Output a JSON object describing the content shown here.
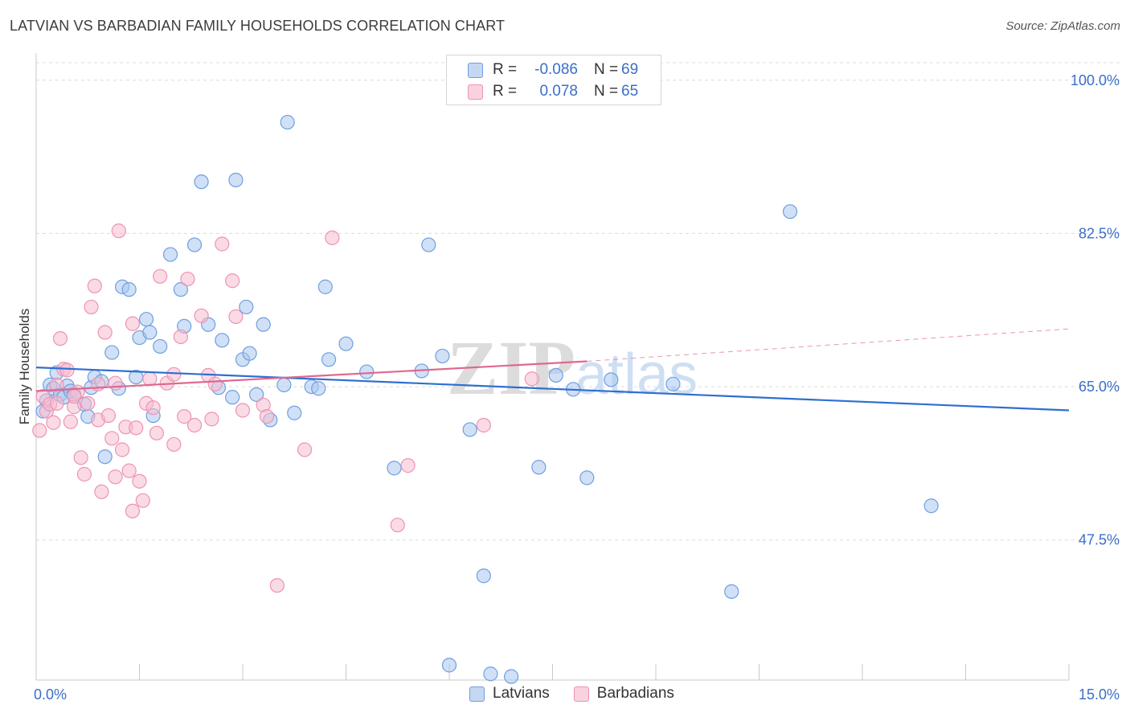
{
  "title": "LATVIAN VS BARBADIAN FAMILY HOUSEHOLDS CORRELATION CHART",
  "source": "Source: ZipAtlas.com",
  "watermark": {
    "zip": "ZIP",
    "atlas": "atlas"
  },
  "colors": {
    "latvian_fill": "#a9c6ee",
    "latvian_stroke": "#6f9fe0",
    "latvian_line": "#2f6fd0",
    "barbadian_fill": "#f6bcd0",
    "barbadian_stroke": "#ee93b3",
    "barbadian_line": "#e0688f",
    "axis_text": "#3a6fcb",
    "grid": "#dcdcdc"
  },
  "legend_top": [
    {
      "r_label": "R =",
      "r_value": "-0.086",
      "n_label": "N =",
      "n_value": "69"
    },
    {
      "r_label": "R =",
      "r_value": "0.078",
      "n_label": "N =",
      "n_value": "65"
    }
  ],
  "chart_data": {
    "type": "scatter",
    "title": "LATVIAN VS BARBADIAN FAMILY HOUSEHOLDS CORRELATION CHART",
    "xlabel": "",
    "ylabel": "Family Households",
    "xlim": [
      0,
      15
    ],
    "ylim": [
      31.5,
      102
    ],
    "x_tick_labels": [
      "0.0%",
      "15.0%"
    ],
    "y_ticks": [
      47.5,
      65.0,
      82.5,
      100.0
    ],
    "y_tick_labels": [
      "47.5%",
      "65.0%",
      "82.5%",
      "100.0%"
    ],
    "grid": true,
    "legend_position": "bottom",
    "series": [
      {
        "name": "Latvians",
        "r": -0.086,
        "n": 69,
        "trend": {
          "x": [
            0.0,
            15.0
          ],
          "y": [
            67.2,
            62.3
          ]
        },
        "points": [
          [
            0.1,
            62.2
          ],
          [
            0.15,
            63.4
          ],
          [
            0.2,
            65.2
          ],
          [
            0.25,
            64.8
          ],
          [
            0.3,
            66.6
          ],
          [
            0.35,
            64.1
          ],
          [
            0.4,
            63.8
          ],
          [
            0.45,
            65.1
          ],
          [
            0.5,
            64.5
          ],
          [
            0.55,
            64.1
          ],
          [
            0.7,
            63.0
          ],
          [
            0.75,
            61.6
          ],
          [
            0.8,
            64.9
          ],
          [
            0.85,
            66.1
          ],
          [
            0.95,
            65.6
          ],
          [
            1.0,
            57.0
          ],
          [
            1.1,
            68.9
          ],
          [
            1.2,
            64.8
          ],
          [
            1.25,
            76.4
          ],
          [
            1.35,
            76.1
          ],
          [
            1.45,
            66.1
          ],
          [
            1.5,
            70.6
          ],
          [
            1.6,
            72.7
          ],
          [
            1.65,
            71.2
          ],
          [
            1.7,
            61.7
          ],
          [
            1.8,
            69.6
          ],
          [
            1.95,
            80.1
          ],
          [
            2.1,
            76.1
          ],
          [
            2.15,
            71.9
          ],
          [
            2.3,
            81.2
          ],
          [
            2.4,
            88.4
          ],
          [
            2.5,
            72.1
          ],
          [
            2.65,
            64.9
          ],
          [
            2.7,
            70.3
          ],
          [
            2.85,
            63.8
          ],
          [
            2.9,
            88.6
          ],
          [
            3.0,
            68.1
          ],
          [
            3.05,
            74.1
          ],
          [
            3.1,
            68.8
          ],
          [
            3.2,
            64.1
          ],
          [
            3.3,
            72.1
          ],
          [
            3.4,
            61.2
          ],
          [
            3.6,
            65.2
          ],
          [
            3.65,
            95.2
          ],
          [
            3.75,
            62.0
          ],
          [
            4.0,
            65.0
          ],
          [
            4.1,
            64.8
          ],
          [
            4.2,
            76.4
          ],
          [
            4.25,
            68.1
          ],
          [
            4.5,
            69.9
          ],
          [
            4.8,
            66.7
          ],
          [
            5.2,
            55.7
          ],
          [
            5.7,
            81.2
          ],
          [
            5.6,
            66.8
          ],
          [
            5.9,
            68.5
          ],
          [
            6.0,
            33.2
          ],
          [
            6.3,
            60.1
          ],
          [
            6.5,
            43.4
          ],
          [
            6.6,
            32.2
          ],
          [
            6.9,
            31.9
          ],
          [
            7.3,
            55.8
          ],
          [
            7.55,
            66.3
          ],
          [
            7.8,
            64.7
          ],
          [
            8.0,
            54.6
          ],
          [
            8.35,
            65.8
          ],
          [
            9.25,
            65.3
          ],
          [
            10.1,
            41.6
          ],
          [
            10.95,
            85.0
          ],
          [
            13.0,
            51.4
          ]
        ]
      },
      {
        "name": "Barbadians",
        "r": 0.078,
        "n": 65,
        "trend": {
          "x": [
            0.0,
            8.0
          ],
          "y": [
            64.5,
            67.9
          ]
        },
        "trend_extension": {
          "x": [
            8.0,
            15.0
          ],
          "y": [
            67.9,
            71.6
          ]
        },
        "points": [
          [
            0.05,
            60.0
          ],
          [
            0.1,
            63.9
          ],
          [
            0.15,
            62.2
          ],
          [
            0.2,
            63.0
          ],
          [
            0.25,
            60.9
          ],
          [
            0.3,
            63.1
          ],
          [
            0.35,
            70.5
          ],
          [
            0.4,
            67.0
          ],
          [
            0.45,
            66.9
          ],
          [
            0.5,
            61.0
          ],
          [
            0.55,
            62.7
          ],
          [
            0.6,
            64.4
          ],
          [
            0.65,
            56.9
          ],
          [
            0.7,
            55.0
          ],
          [
            0.75,
            63.1
          ],
          [
            0.8,
            74.1
          ],
          [
            0.85,
            76.5
          ],
          [
            0.9,
            65.3
          ],
          [
            0.95,
            53.0
          ],
          [
            1.0,
            71.2
          ],
          [
            1.1,
            59.1
          ],
          [
            1.15,
            65.4
          ],
          [
            1.2,
            82.8
          ],
          [
            1.25,
            57.8
          ],
          [
            1.3,
            60.4
          ],
          [
            1.35,
            55.4
          ],
          [
            1.4,
            72.2
          ],
          [
            1.45,
            60.3
          ],
          [
            1.5,
            54.2
          ],
          [
            1.55,
            52.0
          ],
          [
            1.6,
            63.1
          ],
          [
            1.65,
            65.9
          ],
          [
            1.7,
            62.6
          ],
          [
            1.8,
            77.6
          ],
          [
            1.9,
            65.4
          ],
          [
            2.0,
            66.4
          ],
          [
            2.1,
            70.7
          ],
          [
            2.15,
            61.6
          ],
          [
            2.2,
            77.3
          ],
          [
            2.3,
            60.6
          ],
          [
            2.4,
            73.1
          ],
          [
            2.5,
            66.3
          ],
          [
            2.55,
            61.3
          ],
          [
            2.6,
            65.3
          ],
          [
            2.7,
            81.3
          ],
          [
            2.85,
            77.1
          ],
          [
            2.9,
            73.0
          ],
          [
            3.0,
            62.3
          ],
          [
            3.3,
            62.9
          ],
          [
            3.35,
            61.6
          ],
          [
            3.5,
            42.3
          ],
          [
            3.9,
            57.8
          ],
          [
            4.3,
            82.0
          ],
          [
            5.25,
            49.2
          ],
          [
            5.4,
            56.0
          ],
          [
            6.5,
            60.6
          ],
          [
            7.2,
            65.9
          ],
          [
            0.3,
            65.2
          ],
          [
            0.55,
            63.9
          ],
          [
            0.9,
            61.2
          ],
          [
            1.05,
            61.7
          ],
          [
            1.15,
            54.7
          ],
          [
            1.4,
            50.8
          ],
          [
            1.75,
            59.7
          ],
          [
            2.0,
            58.4
          ]
        ]
      }
    ]
  },
  "legend_bottom": [
    "Latvians",
    "Barbadians"
  ]
}
